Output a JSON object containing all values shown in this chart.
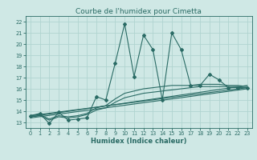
{
  "title": "Courbe de l'humidex pour Cimetta",
  "xlabel": "Humidex (Indice chaleur)",
  "ylabel": "",
  "bg_color": "#cfe8e5",
  "grid_color": "#b0d4d0",
  "line_color": "#2a6b65",
  "xlim": [
    -0.5,
    23.5
  ],
  "ylim": [
    12.5,
    22.5
  ],
  "xticks": [
    0,
    1,
    2,
    3,
    4,
    5,
    6,
    7,
    8,
    9,
    10,
    11,
    12,
    13,
    14,
    15,
    16,
    17,
    18,
    19,
    20,
    21,
    22,
    23
  ],
  "yticks": [
    13,
    14,
    15,
    16,
    17,
    18,
    19,
    20,
    21,
    22
  ],
  "main_line_x": [
    0,
    1,
    2,
    3,
    4,
    5,
    6,
    7,
    8,
    9,
    10,
    11,
    12,
    13,
    14,
    15,
    16,
    17,
    18,
    19,
    20,
    21,
    22,
    23
  ],
  "main_line_y": [
    13.6,
    13.8,
    12.9,
    13.9,
    13.2,
    13.3,
    13.4,
    15.3,
    15.0,
    18.3,
    21.8,
    17.1,
    20.8,
    19.5,
    15.0,
    21.0,
    19.5,
    16.3,
    16.3,
    17.3,
    16.8,
    16.1,
    16.1,
    16.1
  ],
  "trend1_x": [
    0,
    23
  ],
  "trend1_y": [
    13.6,
    16.1
  ],
  "trend2_x": [
    0,
    23
  ],
  "trend2_y": [
    13.5,
    16.3
  ],
  "trend3_x": [
    0,
    23
  ],
  "trend3_y": [
    13.4,
    16.0
  ],
  "curve1_x": [
    0,
    1,
    2,
    3,
    4,
    5,
    6,
    7,
    8,
    9,
    10,
    11,
    12,
    13,
    14,
    15,
    16,
    17,
    18,
    19,
    20,
    21,
    22,
    23
  ],
  "curve1_y": [
    13.5,
    13.6,
    13.2,
    13.5,
    13.4,
    13.5,
    13.7,
    14.1,
    14.3,
    14.8,
    15.2,
    15.4,
    15.6,
    15.7,
    15.8,
    15.9,
    16.0,
    16.1,
    16.2,
    16.2,
    16.2,
    16.2,
    16.2,
    16.1
  ],
  "curve2_x": [
    0,
    1,
    2,
    3,
    4,
    5,
    6,
    7,
    8,
    9,
    10,
    11,
    12,
    13,
    14,
    15,
    16,
    17,
    18,
    19,
    20,
    21,
    22,
    23
  ],
  "curve2_y": [
    13.6,
    13.7,
    13.3,
    13.6,
    13.5,
    13.6,
    13.8,
    14.3,
    14.5,
    15.1,
    15.6,
    15.8,
    16.0,
    16.1,
    16.2,
    16.3,
    16.3,
    16.3,
    16.4,
    16.4,
    16.4,
    16.3,
    16.3,
    16.2
  ],
  "title_fontsize": 6.5,
  "xlabel_fontsize": 6.0,
  "tick_fontsize": 4.8
}
